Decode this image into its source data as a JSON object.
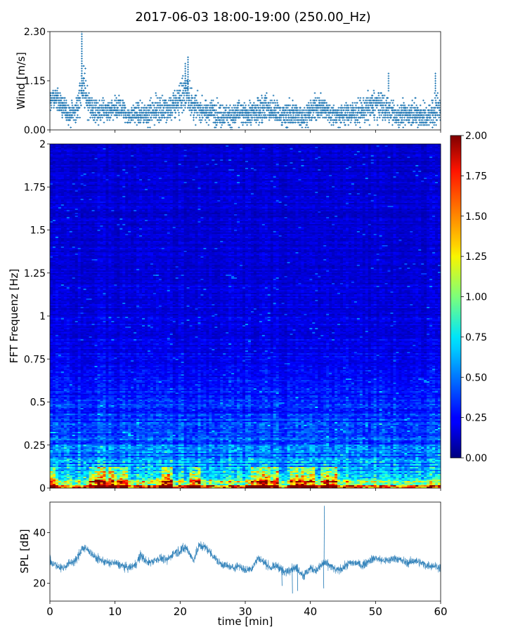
{
  "figure": {
    "title": "2017-06-03 18:00-19:00 (250.00_Hz)"
  },
  "chart_data": [
    {
      "type": "scatter",
      "name_role": "wind",
      "ylabel": "Wind [m/s]",
      "xlim": [
        0,
        60
      ],
      "ylim": [
        0,
        2.3
      ],
      "yticks": [
        0.0,
        1.15,
        2.3
      ],
      "ytick_labels": [
        "0.00",
        "1.15",
        "2.30"
      ],
      "xticks": [
        0,
        10,
        20,
        30,
        40,
        50,
        60
      ],
      "marker": "+",
      "color": "#1f77b4",
      "quantization_step": 0.0575,
      "profile_x_min": [
        0,
        1,
        2,
        3,
        4,
        5,
        6,
        7,
        8,
        9,
        10,
        11,
        12,
        13,
        14,
        15,
        16,
        17,
        18,
        19,
        20,
        21,
        22,
        23,
        24,
        25,
        26,
        27,
        28,
        29,
        30,
        31,
        32,
        33,
        34,
        35,
        36,
        37,
        38,
        39,
        40,
        41,
        42,
        43,
        44,
        45,
        46,
        47,
        48,
        49,
        50,
        51,
        52,
        53,
        54,
        55,
        56,
        57,
        58,
        59,
        60
      ],
      "profile_typical": [
        0.7,
        0.75,
        0.55,
        0.35,
        0.45,
        1.05,
        0.6,
        0.4,
        0.45,
        0.4,
        0.45,
        0.55,
        0.3,
        0.4,
        0.35,
        0.4,
        0.45,
        0.5,
        0.45,
        0.55,
        0.75,
        0.9,
        0.55,
        0.5,
        0.4,
        0.45,
        0.35,
        0.35,
        0.3,
        0.4,
        0.35,
        0.4,
        0.45,
        0.55,
        0.45,
        0.4,
        0.35,
        0.4,
        0.35,
        0.3,
        0.4,
        0.55,
        0.5,
        0.4,
        0.35,
        0.35,
        0.4,
        0.4,
        0.45,
        0.5,
        0.6,
        0.55,
        0.45,
        0.35,
        0.35,
        0.4,
        0.4,
        0.35,
        0.3,
        0.45,
        0.55
      ],
      "profile_max": [
        1.25,
        1.2,
        1.15,
        0.9,
        0.9,
        2.3,
        1.2,
        1.0,
        1.0,
        0.95,
        1.0,
        1.05,
        0.8,
        0.85,
        0.95,
        1.0,
        1.05,
        1.1,
        1.05,
        1.2,
        1.5,
        1.7,
        1.2,
        1.0,
        0.95,
        1.0,
        1.1,
        0.9,
        0.9,
        0.95,
        0.95,
        1.0,
        1.1,
        1.25,
        1.0,
        1.0,
        0.95,
        1.1,
        1.0,
        0.9,
        1.0,
        1.15,
        1.05,
        1.0,
        0.95,
        0.95,
        1.0,
        1.05,
        1.1,
        1.3,
        1.35,
        1.2,
        1.0,
        0.95,
        1.0,
        1.05,
        1.1,
        1.05,
        0.95,
        1.35,
        1.1
      ],
      "profile_min": [
        0.2,
        0.4,
        0.2,
        0.06,
        0.06,
        0.4,
        0.12,
        0.06,
        0.06,
        0.06,
        0.06,
        0.12,
        0.06,
        0.06,
        0.06,
        0.06,
        0.06,
        0.06,
        0.06,
        0.06,
        0.12,
        0.23,
        0.06,
        0.06,
        0.06,
        0.06,
        0.06,
        0.06,
        0.0,
        0.06,
        0.06,
        0.06,
        0.06,
        0.12,
        0.06,
        0.06,
        0.06,
        0.06,
        0.06,
        0.0,
        0.06,
        0.12,
        0.12,
        0.06,
        0.06,
        0.06,
        0.06,
        0.06,
        0.06,
        0.06,
        0.12,
        0.06,
        0.06,
        0.06,
        0.06,
        0.06,
        0.06,
        0.06,
        0.06,
        0.06,
        0.06
      ],
      "peaks": [
        [
          4.9,
          2.3
        ],
        [
          21.2,
          1.7
        ],
        [
          20.8,
          1.55
        ],
        [
          52.0,
          1.32
        ],
        [
          59.2,
          1.32
        ]
      ]
    },
    {
      "type": "heatmap",
      "ylabel": "FFT Frequenz [Hz]",
      "xlim": [
        0,
        60
      ],
      "ylim": [
        0,
        2
      ],
      "yticks": [
        0,
        0.25,
        0.5,
        0.75,
        1,
        1.25,
        1.5,
        1.75,
        2
      ],
      "ytick_labels": [
        "0",
        "0.25",
        "0.5",
        "0.75",
        "1",
        "1.25",
        "1.5",
        "1.75",
        "2"
      ],
      "xticks": [
        0,
        10,
        20,
        30,
        40,
        50,
        60
      ],
      "colormap": "jet",
      "clim": [
        0,
        2
      ],
      "colorbar_ticks": [
        "0.00",
        "0.25",
        "0.50",
        "0.75",
        "1.00",
        "1.25",
        "1.50",
        "1.75",
        "2.00"
      ],
      "freq_profile_hz": [
        0.0,
        0.02,
        0.05,
        0.1,
        0.25,
        0.5,
        0.75,
        1.0,
        1.5,
        2.0
      ],
      "freq_profile_level": [
        1.8,
        1.2,
        0.85,
        0.6,
        0.4,
        0.3,
        0.22,
        0.18,
        0.16,
        0.16
      ],
      "hot_low_freq_minutes": [
        [
          0,
          1
        ],
        [
          6,
          9
        ],
        [
          9,
          12
        ],
        [
          17,
          19
        ],
        [
          21.5,
          23
        ],
        [
          31,
          35
        ],
        [
          37,
          40.5
        ],
        [
          41.5,
          44
        ]
      ]
    },
    {
      "type": "line",
      "ylabel": "SPL [dB]",
      "xlabel": "time [min]",
      "xlim": [
        0,
        60
      ],
      "ylim": [
        13,
        52
      ],
      "yticks": [
        20,
        40
      ],
      "ytick_labels": [
        "20",
        "40"
      ],
      "xticks": [
        0,
        10,
        20,
        30,
        40,
        50,
        60
      ],
      "xtick_labels": [
        "0",
        "10",
        "20",
        "30",
        "40",
        "50",
        "60"
      ],
      "color": "#1f77b4",
      "envelope_x_min": [
        0,
        1,
        2,
        3,
        4,
        5,
        6,
        7,
        8,
        9,
        10,
        11,
        12,
        13,
        14,
        15,
        16,
        17,
        18,
        19,
        20,
        21,
        22,
        23,
        24,
        25,
        26,
        27,
        28,
        29,
        30,
        31,
        32,
        33,
        34,
        35,
        36,
        37,
        38,
        39,
        40,
        41,
        42,
        43,
        44,
        45,
        46,
        47,
        48,
        49,
        50,
        51,
        52,
        53,
        54,
        55,
        56,
        57,
        58,
        59,
        60
      ],
      "envelope_center": [
        29,
        27,
        26,
        28,
        29,
        34,
        33,
        30,
        29,
        28,
        28,
        27,
        26,
        27,
        31,
        28,
        29,
        30,
        29,
        32,
        33,
        34,
        29,
        35,
        34,
        31,
        28,
        27,
        26,
        27,
        25,
        26,
        30,
        28,
        26,
        27,
        24,
        26,
        26,
        23,
        26,
        25,
        28,
        27,
        25,
        26,
        28,
        28,
        27,
        29,
        30,
        29,
        29,
        30,
        29,
        28,
        29,
        28,
        27,
        27,
        26
      ],
      "envelope_half_width": [
        4,
        3,
        3,
        3,
        3,
        4,
        3,
        3,
        3,
        3,
        3,
        3,
        3,
        3,
        4,
        3,
        3,
        3,
        3,
        3,
        4,
        4,
        3,
        4,
        3,
        3,
        3,
        3,
        3,
        3,
        3,
        3,
        3,
        3,
        3,
        3,
        4,
        3,
        3,
        4,
        3,
        3,
        4,
        3,
        3,
        3,
        3,
        3,
        3,
        3,
        3,
        3,
        3,
        3,
        3,
        3,
        3,
        3,
        3,
        3,
        3
      ],
      "spikes": [
        [
          42.1,
          50.5
        ],
        [
          42.0,
          18.0
        ],
        [
          37.2,
          16.0
        ],
        [
          35.6,
          19.0
        ],
        [
          38.0,
          17.0
        ]
      ]
    }
  ]
}
